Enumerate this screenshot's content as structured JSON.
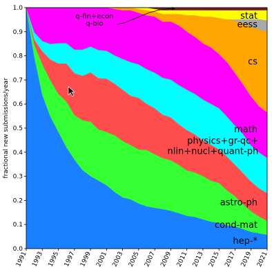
{
  "chart_data": {
    "type": "area",
    "stacked": true,
    "normalized": true,
    "ylabel": "fractional new submissions/year",
    "xlabel": "",
    "title": "",
    "xlim": [
      1991,
      2021
    ],
    "ylim": [
      0,
      1.0
    ],
    "x_ticks": [
      "1991",
      "1993",
      "1995",
      "1997",
      "1999",
      "2001",
      "2003",
      "2005",
      "2007",
      "2009",
      "2011",
      "2013",
      "2015",
      "2017",
      "2019",
      "2021"
    ],
    "y_ticks": [
      "0.0",
      "0.1",
      "0.2",
      "0.3",
      "0.4",
      "0.5",
      "0.6",
      "0.7",
      "0.8",
      "0.9",
      "1.0"
    ],
    "grid": false,
    "legend": "none (labels drawn inside areas)",
    "x": [
      1991,
      1992,
      1993,
      1994,
      1995,
      1996,
      1997,
      1998,
      1999,
      2000,
      2001,
      2002,
      2003,
      2004,
      2005,
      2006,
      2007,
      2008,
      2009,
      2010,
      2011,
      2012,
      2013,
      2014,
      2015,
      2016,
      2017,
      2018,
      2019,
      2020,
      2021
    ],
    "series": [
      {
        "name": "hep-*",
        "color": "#1a80ff",
        "values": [
          1.0,
          0.78,
          0.6,
          0.51,
          0.46,
          0.4,
          0.34,
          0.3,
          0.28,
          0.265,
          0.25,
          0.22,
          0.2,
          0.19,
          0.175,
          0.165,
          0.16,
          0.155,
          0.15,
          0.14,
          0.13,
          0.125,
          0.115,
          0.105,
          0.1,
          0.09,
          0.085,
          0.075,
          0.065,
          0.06,
          0.055
        ]
      },
      {
        "name": "cond-mat",
        "color": "#33ff33",
        "values": [
          0.0,
          0.05,
          0.12,
          0.14,
          0.15,
          0.18,
          0.17,
          0.19,
          0.21,
          0.2,
          0.21,
          0.22,
          0.22,
          0.21,
          0.21,
          0.22,
          0.21,
          0.2,
          0.2,
          0.19,
          0.18,
          0.175,
          0.17,
          0.16,
          0.155,
          0.135,
          0.115,
          0.095,
          0.08,
          0.065,
          0.055
        ]
      },
      {
        "name": "astro-ph",
        "color": "#ff4d4d",
        "values": [
          0.0,
          0.02,
          0.05,
          0.08,
          0.12,
          0.15,
          0.16,
          0.17,
          0.19,
          0.2,
          0.21,
          0.2,
          0.2,
          0.19,
          0.2,
          0.18,
          0.18,
          0.17,
          0.17,
          0.16,
          0.16,
          0.15,
          0.14,
          0.14,
          0.13,
          0.13,
          0.12,
          0.12,
          0.115,
          0.11,
          0.11
        ]
      },
      {
        "name": "physics+gr-qc+\nnlin+nucl+quant-ph",
        "color": "#00ffff",
        "values": [
          0.0,
          0.03,
          0.04,
          0.06,
          0.08,
          0.08,
          0.09,
          0.1,
          0.1,
          0.11,
          0.11,
          0.11,
          0.12,
          0.13,
          0.13,
          0.135,
          0.14,
          0.145,
          0.15,
          0.155,
          0.16,
          0.16,
          0.16,
          0.16,
          0.16,
          0.155,
          0.15,
          0.15,
          0.14,
          0.14,
          0.14
        ]
      },
      {
        "name": "math",
        "color": "#ff00ff",
        "values": [
          0.0,
          0.1,
          0.13,
          0.14,
          0.14,
          0.14,
          0.16,
          0.16,
          0.15,
          0.165,
          0.17,
          0.18,
          0.19,
          0.2,
          0.2,
          0.21,
          0.22,
          0.22,
          0.23,
          0.235,
          0.23,
          0.225,
          0.22,
          0.22,
          0.21,
          0.21,
          0.2,
          0.19,
          0.19,
          0.18,
          0.18
        ]
      },
      {
        "name": "cs",
        "color": "#ffa500",
        "values": [
          0.0,
          0.0,
          0.0,
          0.0,
          0.0,
          0.0,
          0.0,
          0.0,
          0.0,
          0.0,
          0.0,
          0.005,
          0.01,
          0.01,
          0.015,
          0.02,
          0.02,
          0.03,
          0.03,
          0.045,
          0.065,
          0.085,
          0.105,
          0.12,
          0.14,
          0.165,
          0.2,
          0.235,
          0.27,
          0.3,
          0.32
        ]
      },
      {
        "name": "eess",
        "color": "#aaaaaa",
        "values": [
          0,
          0,
          0,
          0,
          0,
          0,
          0,
          0,
          0,
          0,
          0,
          0,
          0,
          0,
          0,
          0,
          0,
          0,
          0,
          0,
          0,
          0,
          0,
          0,
          0,
          0,
          0.005,
          0.015,
          0.03,
          0.04,
          0.045
        ]
      },
      {
        "name": "stat",
        "color": "#ffff00",
        "values": [
          0,
          0,
          0,
          0,
          0,
          0,
          0,
          0,
          0,
          0,
          0,
          0,
          0,
          0,
          0.005,
          0.01,
          0.01,
          0.015,
          0.015,
          0.015,
          0.02,
          0.02,
          0.025,
          0.025,
          0.03,
          0.035,
          0.035,
          0.035,
          0.035,
          0.035,
          0.04
        ]
      },
      {
        "name": "q-bio",
        "color": "#7a1a1a",
        "values": [
          0,
          0,
          0,
          0,
          0,
          0,
          0,
          0,
          0,
          0,
          0,
          0,
          0,
          0,
          0,
          0,
          0.005,
          0.01,
          0.01,
          0.01,
          0.01,
          0.01,
          0.01,
          0.01,
          0.01,
          0.01,
          0.01,
          0.01,
          0.01,
          0.01,
          0.01
        ]
      },
      {
        "name": "q-fin+econ",
        "color": "#22c2a2",
        "values": [
          0,
          0,
          0,
          0,
          0,
          0,
          0,
          0,
          0,
          0,
          0,
          0,
          0,
          0,
          0,
          0,
          0,
          0,
          0,
          0,
          0,
          0,
          0,
          0,
          0,
          0,
          0,
          0,
          0,
          0,
          0
        ]
      }
    ],
    "annotations": [
      {
        "text": "q-fin+econ",
        "name": "annotation-q-fin-econ"
      },
      {
        "text": "q-bio",
        "name": "annotation-q-bio"
      }
    ]
  }
}
